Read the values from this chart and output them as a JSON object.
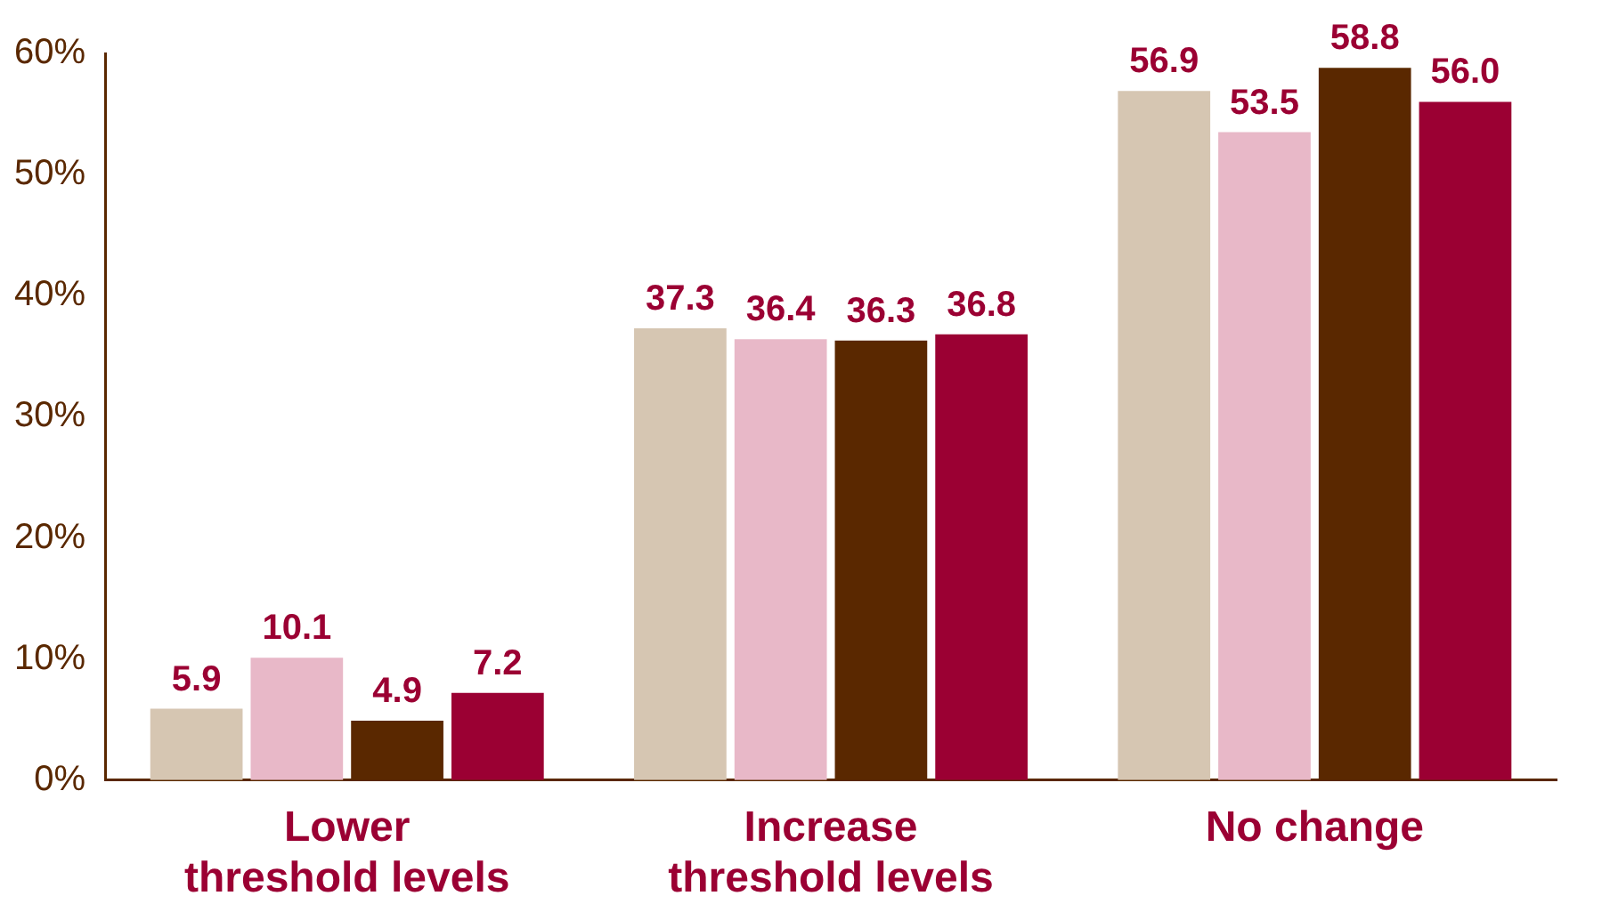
{
  "chart_data": {
    "type": "bar",
    "categories": [
      "Lower threshold levels",
      "Increase threshold levels",
      "No change"
    ],
    "series": [
      {
        "color": "#d6c6b2",
        "values": [
          5.9,
          37.3,
          56.9
        ],
        "value_labels": [
          "5.9",
          "37.3",
          "56.9"
        ]
      },
      {
        "color": "#e8b8c8",
        "values": [
          10.1,
          36.4,
          53.5
        ],
        "value_labels": [
          "10.1",
          "36.4",
          "53.5"
        ]
      },
      {
        "color": "#5a2800",
        "values": [
          4.9,
          36.3,
          58.8
        ],
        "value_labels": [
          "4.9",
          "36.3",
          "58.8"
        ]
      },
      {
        "color": "#9b0033",
        "values": [
          7.2,
          36.8,
          56.0
        ],
        "value_labels": [
          "7.2",
          "36.8",
          "56.0"
        ]
      }
    ],
    "ylim": [
      0,
      60
    ],
    "yticks": [
      {
        "value": 0,
        "label": "0%"
      },
      {
        "value": 10,
        "label": "10%"
      },
      {
        "value": 20,
        "label": "20%"
      },
      {
        "value": 30,
        "label": "30%"
      },
      {
        "value": 40,
        "label": "40%"
      },
      {
        "value": 50,
        "label": "50%"
      },
      {
        "value": 60,
        "label": "60%"
      }
    ],
    "grid": false,
    "legend": false
  }
}
